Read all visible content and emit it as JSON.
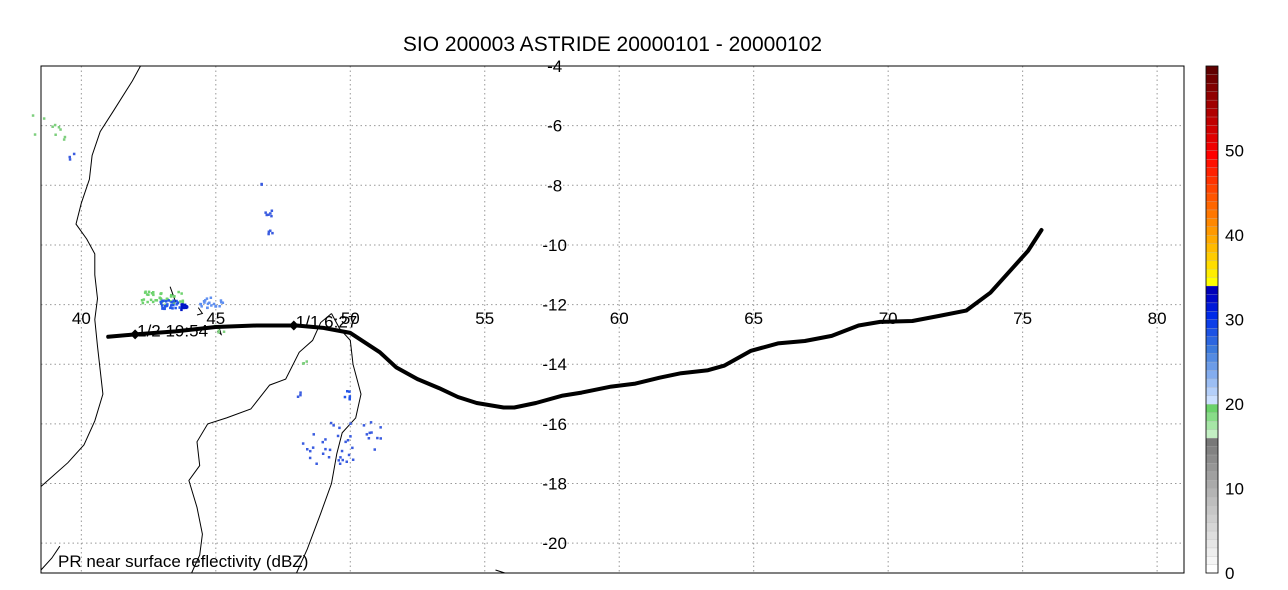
{
  "title": "SIO 200003 ASTRIDE 20000101 - 20000102",
  "footer_label": "PR near surface reflectivity (dBZ)",
  "map": {
    "lon_range": [
      38.5,
      81
    ],
    "lat_range": [
      -21,
      -4
    ],
    "lon_ticks": [
      40,
      45,
      50,
      55,
      60,
      65,
      70,
      75,
      80
    ],
    "lat_ticks": [
      -4,
      -6,
      -8,
      -10,
      -12,
      -14,
      -16,
      -18,
      -20
    ],
    "lon_labels": [
      "40",
      "45",
      "50",
      "55",
      "60",
      "65",
      "70",
      "75",
      "80"
    ],
    "lat_labels": [
      "-4",
      "-6",
      "-8",
      "-10",
      "-12",
      "-14",
      "-16",
      "-18",
      "-20"
    ]
  },
  "track": {
    "points": [
      [
        41.0,
        -13.08
      ],
      [
        42.0,
        -13.0
      ],
      [
        43.5,
        -12.9
      ],
      [
        45.0,
        -12.75
      ],
      [
        46.5,
        -12.7
      ],
      [
        48.0,
        -12.7
      ],
      [
        49.0,
        -12.78
      ],
      [
        50.0,
        -12.95
      ],
      [
        51.1,
        -13.6
      ],
      [
        51.7,
        -14.1
      ],
      [
        52.5,
        -14.5
      ],
      [
        53.3,
        -14.8
      ],
      [
        54.0,
        -15.1
      ],
      [
        54.7,
        -15.3
      ],
      [
        55.7,
        -15.45
      ],
      [
        56.1,
        -15.45
      ],
      [
        56.9,
        -15.3
      ],
      [
        57.9,
        -15.05
      ],
      [
        58.6,
        -14.95
      ],
      [
        59.7,
        -14.75
      ],
      [
        60.6,
        -14.65
      ],
      [
        61.5,
        -14.45
      ],
      [
        62.3,
        -14.3
      ],
      [
        63.3,
        -14.2
      ],
      [
        63.9,
        -14.05
      ],
      [
        64.9,
        -13.55
      ],
      [
        65.9,
        -13.3
      ],
      [
        66.9,
        -13.22
      ],
      [
        67.9,
        -13.05
      ],
      [
        68.9,
        -12.7
      ],
      [
        69.7,
        -12.58
      ],
      [
        70.9,
        -12.55
      ],
      [
        71.9,
        -12.38
      ],
      [
        72.9,
        -12.2
      ],
      [
        73.8,
        -11.6
      ],
      [
        74.6,
        -10.8
      ],
      [
        75.2,
        -10.2
      ],
      [
        75.7,
        -9.5
      ]
    ],
    "markers": [
      {
        "lon": 42.0,
        "lat": -13.0,
        "label": "1/2 19:54"
      },
      {
        "lon": 47.9,
        "lat": -12.7,
        "label": "1/1 6:27"
      }
    ]
  },
  "coastlines": [
    [
      [
        42.2,
        -4.0
      ],
      [
        41.9,
        -4.5
      ],
      [
        41.2,
        -5.5
      ],
      [
        40.7,
        -6.2
      ],
      [
        40.4,
        -7.0
      ],
      [
        40.3,
        -7.8
      ],
      [
        40.0,
        -8.6
      ],
      [
        39.8,
        -9.3
      ],
      [
        40.2,
        -9.8
      ],
      [
        40.5,
        -10.3
      ],
      [
        40.5,
        -11.0
      ],
      [
        40.6,
        -11.8
      ],
      [
        40.5,
        -12.5
      ],
      [
        40.6,
        -13.4
      ],
      [
        40.7,
        -14.2
      ],
      [
        40.8,
        -15.0
      ],
      [
        40.5,
        -15.9
      ],
      [
        40.1,
        -16.7
      ],
      [
        39.5,
        -17.3
      ],
      [
        38.5,
        -18.1
      ]
    ],
    [
      [
        38.5,
        -20.9
      ],
      [
        38.9,
        -20.5
      ],
      [
        39.2,
        -20.1
      ]
    ],
    [
      [
        49.3,
        -12.3
      ],
      [
        49.6,
        -12.8
      ],
      [
        50.0,
        -13.2
      ],
      [
        50.1,
        -14.0
      ],
      [
        50.4,
        -15.0
      ],
      [
        50.2,
        -15.8
      ],
      [
        49.7,
        -16.3
      ],
      [
        49.5,
        -17.0
      ],
      [
        49.3,
        -18.0
      ],
      [
        48.9,
        -19.0
      ],
      [
        48.4,
        -20.2
      ],
      [
        48.0,
        -21.0
      ]
    ],
    [
      [
        49.3,
        -12.3
      ],
      [
        48.9,
        -12.6
      ],
      [
        48.6,
        -13.2
      ],
      [
        48.1,
        -13.6
      ],
      [
        47.6,
        -14.5
      ],
      [
        47.0,
        -14.7
      ],
      [
        46.3,
        -15.5
      ],
      [
        45.4,
        -15.8
      ],
      [
        44.7,
        -16.0
      ],
      [
        44.3,
        -16.6
      ],
      [
        44.4,
        -17.4
      ],
      [
        44.0,
        -17.9
      ],
      [
        44.3,
        -18.8
      ],
      [
        44.5,
        -19.7
      ],
      [
        44.4,
        -20.4
      ],
      [
        44.1,
        -21.0
      ]
    ]
  ],
  "islands": [
    [
      [
        43.3,
        -11.4
      ],
      [
        43.5,
        -11.9
      ],
      [
        43.4,
        -12.0
      ]
    ],
    [
      [
        44.35,
        -12.1
      ],
      [
        44.5,
        -12.3
      ],
      [
        44.3,
        -12.35
      ]
    ],
    [
      [
        45.1,
        -12.7
      ],
      [
        45.2,
        -13.0
      ],
      [
        45.05,
        -12.9
      ]
    ],
    [
      [
        55.4,
        -20.9
      ],
      [
        55.75,
        -21.0
      ]
    ]
  ],
  "rain": [
    {
      "lon": 39.0,
      "lat": -6.0,
      "w": 2.0,
      "h": 1.0,
      "color": "#7ecf7e",
      "dots": 10
    },
    {
      "lon": 39.6,
      "lat": -7.0,
      "w": 0.2,
      "h": 0.2,
      "color": "#3a5ce0",
      "dots": 3
    },
    {
      "lon": 43.0,
      "lat": -11.75,
      "w": 1.6,
      "h": 0.45,
      "color": "#6fd36f",
      "dots": 40
    },
    {
      "lon": 43.35,
      "lat": -11.95,
      "w": 0.9,
      "h": 0.3,
      "color": "#2456e8",
      "dots": 30
    },
    {
      "lon": 43.7,
      "lat": -12.05,
      "w": 0.4,
      "h": 0.2,
      "color": "#0016c8",
      "dots": 12
    },
    {
      "lon": 44.8,
      "lat": -11.9,
      "w": 0.9,
      "h": 0.35,
      "color": "#5f8ff0",
      "dots": 20
    },
    {
      "lon": 45.1,
      "lat": -12.75,
      "w": 0.4,
      "h": 0.3,
      "color": "#7ecf7e",
      "dots": 6
    },
    {
      "lon": 46.9,
      "lat": -8.9,
      "w": 0.35,
      "h": 0.2,
      "color": "#3a5ce0",
      "dots": 6
    },
    {
      "lon": 47.0,
      "lat": -9.55,
      "w": 0.2,
      "h": 0.15,
      "color": "#3a5ce0",
      "dots": 4
    },
    {
      "lon": 49.7,
      "lat": -16.6,
      "w": 3.0,
      "h": 1.4,
      "color": "#3a5ce0",
      "dots": 40
    },
    {
      "lon": 49.9,
      "lat": -15.0,
      "w": 0.3,
      "h": 0.3,
      "color": "#2456e8",
      "dots": 6
    },
    {
      "lon": 48.3,
      "lat": -13.9,
      "w": 0.2,
      "h": 0.15,
      "color": "#7ecf7e",
      "dots": 3
    },
    {
      "lon": 48.1,
      "lat": -15.0,
      "w": 0.2,
      "h": 0.2,
      "color": "#3a5ce0",
      "dots": 3
    },
    {
      "lon": 46.7,
      "lat": -7.9,
      "w": 0.1,
      "h": 0.1,
      "color": "#3a5ce0",
      "dots": 2
    }
  ],
  "colorbar": {
    "min": 0,
    "max": 60,
    "labels": [
      "0",
      "10",
      "20",
      "30",
      "40",
      "50"
    ],
    "label_values": [
      0,
      10,
      20,
      30,
      40,
      50
    ],
    "bins": [
      "#ffffff",
      "#f6f6f6",
      "#eeeeee",
      "#e6e6e6",
      "#dedede",
      "#d6d6d6",
      "#cecece",
      "#c6c6c6",
      "#bebebe",
      "#b4b4b4",
      "#aaaaaa",
      "#a0a0a0",
      "#969696",
      "#8c8c8c",
      "#828282",
      "#787878",
      "#c4f0c4",
      "#a6e6a6",
      "#88dc88",
      "#6ad26a",
      "#cce0ff",
      "#b4cff9",
      "#9cbef3",
      "#84adee",
      "#6c9ce8",
      "#548be2",
      "#3c7adc",
      "#2c66e0",
      "#1c52e4",
      "#0c3ee8",
      "#002ae8",
      "#0018d8",
      "#0008c8",
      "#0000b8",
      "#ffff00",
      "#ffee00",
      "#ffdd00",
      "#ffcc00",
      "#ffbb00",
      "#ffaa00",
      "#ff9900",
      "#ff8800",
      "#ff7700",
      "#ff6600",
      "#ff5500",
      "#ff4400",
      "#ff3300",
      "#ff2200",
      "#ff1100",
      "#ff0000",
      "#f00000",
      "#e00000",
      "#d00000",
      "#c00000",
      "#b00000",
      "#a00000",
      "#900000",
      "#800000",
      "#700000",
      "#600000"
    ]
  }
}
